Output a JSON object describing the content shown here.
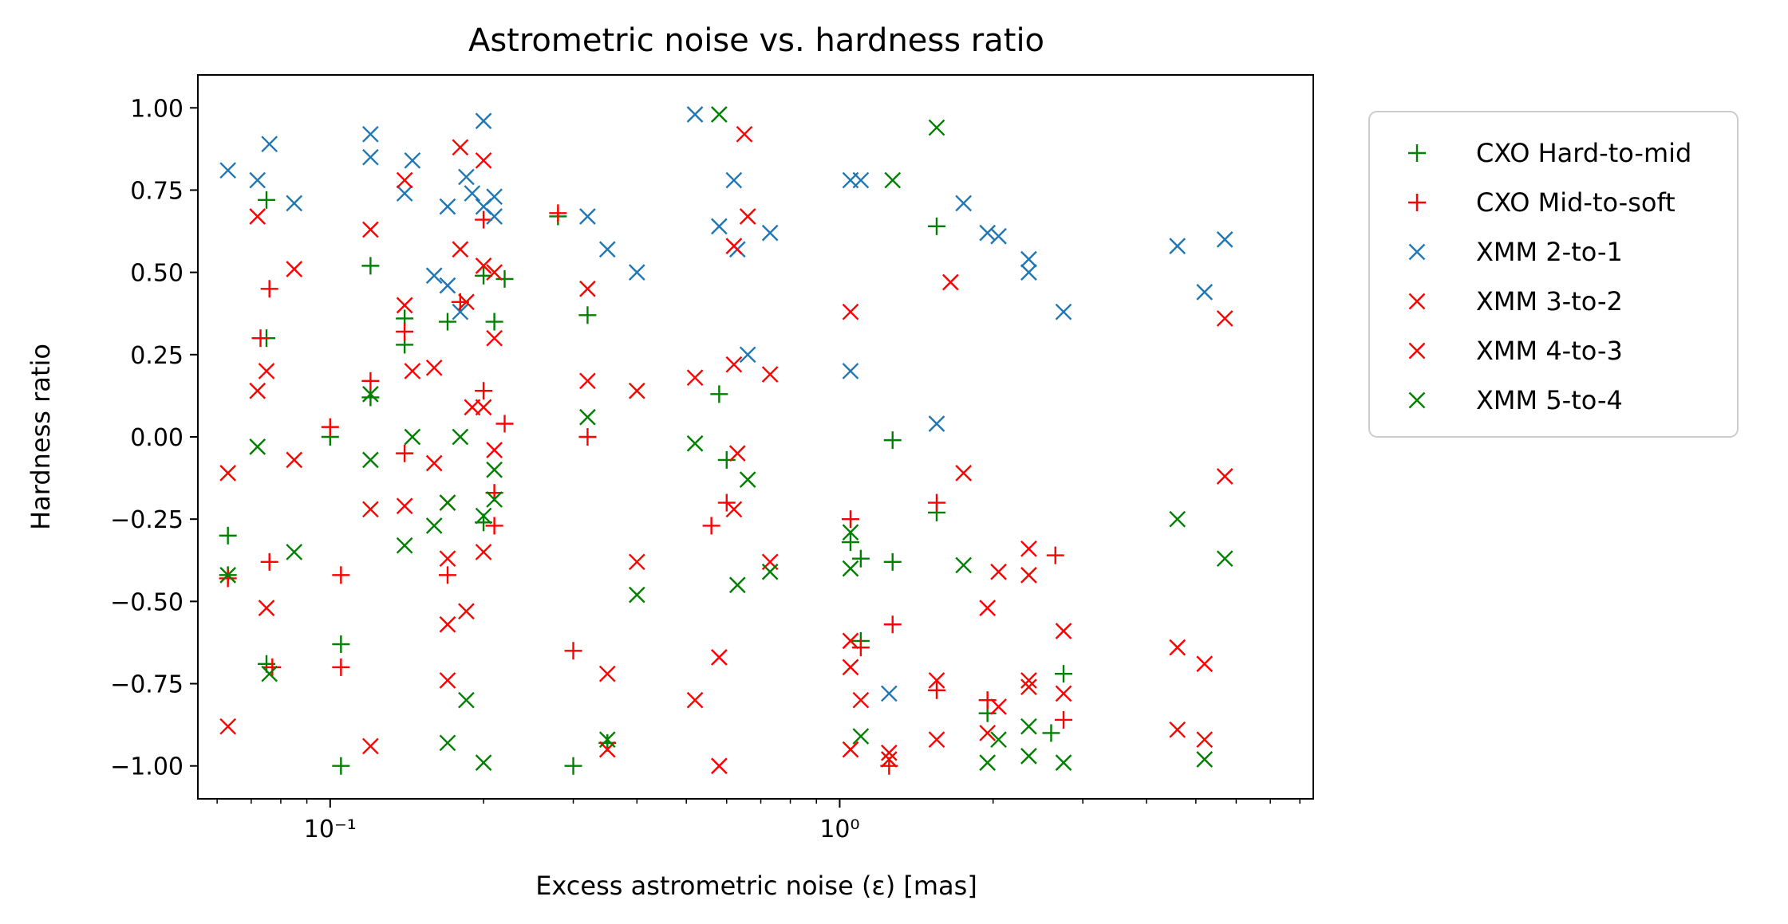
{
  "chart_data": {
    "type": "scatter",
    "title": "Astrometric noise vs. hardness ratio",
    "xlabel": "Excess astrometric noise (ε) [mas]",
    "ylabel": "Hardness ratio",
    "xscale": "log",
    "xlim": [
      0.055,
      8.5
    ],
    "ylim": [
      -1.1,
      1.1
    ],
    "xticks_major": [
      {
        "value": 0.1,
        "label": "10⁻¹"
      },
      {
        "value": 1,
        "label": "10⁰"
      }
    ],
    "yticks": [
      {
        "value": 1.0,
        "label": "1.00"
      },
      {
        "value": 0.75,
        "label": "0.75"
      },
      {
        "value": 0.5,
        "label": "0.50"
      },
      {
        "value": 0.25,
        "label": "0.25"
      },
      {
        "value": 0.0,
        "label": "0.00"
      },
      {
        "value": -0.25,
        "label": "−0.25"
      },
      {
        "value": -0.5,
        "label": "−0.50"
      },
      {
        "value": -0.75,
        "label": "−0.75"
      },
      {
        "value": -1.0,
        "label": "−1.00"
      }
    ],
    "grid": false,
    "legend_position": "outside-right",
    "series": [
      {
        "name": "CXO Hard-to-mid",
        "marker": "plus",
        "color": "#008000",
        "points": [
          [
            0.063,
            -0.3
          ],
          [
            0.063,
            -0.42
          ],
          [
            0.075,
            0.72
          ],
          [
            0.075,
            0.3
          ],
          [
            0.075,
            -0.69
          ],
          [
            0.1,
            0.0
          ],
          [
            0.105,
            -1.0
          ],
          [
            0.105,
            -0.63
          ],
          [
            0.12,
            0.52
          ],
          [
            0.12,
            0.12
          ],
          [
            0.14,
            0.36
          ],
          [
            0.14,
            0.28
          ],
          [
            0.17,
            0.35
          ],
          [
            0.2,
            0.49
          ],
          [
            0.2,
            -0.26
          ],
          [
            0.21,
            0.35
          ],
          [
            0.22,
            0.48
          ],
          [
            0.28,
            0.67
          ],
          [
            0.3,
            -1.0
          ],
          [
            0.32,
            0.37
          ],
          [
            0.35,
            -0.93
          ],
          [
            0.58,
            0.13
          ],
          [
            0.6,
            -0.07
          ],
          [
            1.05,
            -0.32
          ],
          [
            1.1,
            -0.37
          ],
          [
            1.1,
            -0.62
          ],
          [
            1.27,
            -0.38
          ],
          [
            1.27,
            -0.01
          ],
          [
            1.55,
            -0.23
          ],
          [
            1.55,
            0.64
          ],
          [
            1.95,
            -0.84
          ],
          [
            2.6,
            -0.9
          ],
          [
            2.75,
            -0.72
          ]
        ]
      },
      {
        "name": "CXO Mid-to-soft",
        "marker": "plus",
        "color": "#ff0000",
        "points": [
          [
            0.063,
            -0.43
          ],
          [
            0.073,
            0.3
          ],
          [
            0.076,
            0.45
          ],
          [
            0.076,
            -0.38
          ],
          [
            0.077,
            -0.7
          ],
          [
            0.1,
            0.03
          ],
          [
            0.105,
            -0.42
          ],
          [
            0.105,
            -0.7
          ],
          [
            0.12,
            0.17
          ],
          [
            0.14,
            -0.05
          ],
          [
            0.14,
            0.32
          ],
          [
            0.17,
            -0.42
          ],
          [
            0.18,
            0.41
          ],
          [
            0.2,
            0.66
          ],
          [
            0.2,
            0.14
          ],
          [
            0.21,
            -0.17
          ],
          [
            0.21,
            -0.27
          ],
          [
            0.22,
            0.04
          ],
          [
            0.28,
            0.68
          ],
          [
            0.3,
            -0.65
          ],
          [
            0.32,
            0.0
          ],
          [
            0.56,
            -0.27
          ],
          [
            0.6,
            -0.2
          ],
          [
            1.05,
            -0.25
          ],
          [
            1.1,
            -0.64
          ],
          [
            1.25,
            -1.0
          ],
          [
            1.27,
            -0.57
          ],
          [
            1.55,
            -0.77
          ],
          [
            1.55,
            -0.2
          ],
          [
            1.95,
            -0.8
          ],
          [
            2.65,
            -0.36
          ],
          [
            2.75,
            -0.86
          ]
        ]
      },
      {
        "name": "XMM 2-to-1",
        "marker": "x",
        "color": "#1f77b4",
        "points": [
          [
            0.063,
            0.81
          ],
          [
            0.072,
            0.78
          ],
          [
            0.076,
            0.89
          ],
          [
            0.085,
            0.71
          ],
          [
            0.12,
            0.92
          ],
          [
            0.12,
            0.85
          ],
          [
            0.14,
            0.74
          ],
          [
            0.145,
            0.84
          ],
          [
            0.16,
            0.49
          ],
          [
            0.17,
            0.7
          ],
          [
            0.17,
            0.46
          ],
          [
            0.18,
            0.38
          ],
          [
            0.185,
            0.79
          ],
          [
            0.19,
            0.74
          ],
          [
            0.2,
            0.96
          ],
          [
            0.2,
            0.7
          ],
          [
            0.21,
            0.67
          ],
          [
            0.21,
            0.73
          ],
          [
            0.32,
            0.67
          ],
          [
            0.35,
            0.57
          ],
          [
            0.4,
            0.5
          ],
          [
            0.52,
            0.98
          ],
          [
            0.58,
            0.64
          ],
          [
            0.62,
            0.78
          ],
          [
            0.63,
            0.57
          ],
          [
            0.66,
            0.25
          ],
          [
            0.73,
            0.62
          ],
          [
            1.05,
            0.78
          ],
          [
            1.05,
            0.2
          ],
          [
            1.1,
            0.78
          ],
          [
            1.25,
            -0.78
          ],
          [
            1.55,
            0.04
          ],
          [
            1.75,
            0.71
          ],
          [
            1.95,
            0.62
          ],
          [
            2.05,
            0.61
          ],
          [
            2.35,
            0.54
          ],
          [
            2.35,
            0.5
          ],
          [
            2.75,
            0.38
          ],
          [
            4.6,
            0.58
          ],
          [
            5.2,
            0.44
          ],
          [
            5.7,
            0.6
          ]
        ]
      },
      {
        "name": "XMM 3-to-2",
        "marker": "x",
        "color": "#ff0000",
        "points": [
          [
            0.063,
            -0.11
          ],
          [
            0.072,
            0.67
          ],
          [
            0.072,
            0.14
          ],
          [
            0.075,
            0.2
          ],
          [
            0.075,
            -0.52
          ],
          [
            0.085,
            -0.07
          ],
          [
            0.085,
            0.51
          ],
          [
            0.12,
            0.63
          ],
          [
            0.12,
            -0.22
          ],
          [
            0.14,
            0.4
          ],
          [
            0.14,
            -0.21
          ],
          [
            0.145,
            0.2
          ],
          [
            0.16,
            0.21
          ],
          [
            0.17,
            -0.2
          ],
          [
            0.18,
            0.57
          ],
          [
            0.185,
            0.41
          ],
          [
            0.19,
            0.09
          ],
          [
            0.2,
            0.52
          ],
          [
            0.2,
            -0.35
          ],
          [
            0.21,
            0.3
          ],
          [
            0.21,
            -0.04
          ],
          [
            0.32,
            0.45
          ],
          [
            0.32,
            0.17
          ],
          [
            0.35,
            -0.72
          ],
          [
            0.4,
            0.14
          ],
          [
            0.52,
            0.18
          ],
          [
            0.58,
            -0.67
          ],
          [
            0.62,
            0.58
          ],
          [
            0.63,
            -0.05
          ],
          [
            0.65,
            0.92
          ],
          [
            0.73,
            0.19
          ],
          [
            1.05,
            0.38
          ],
          [
            1.05,
            -0.62
          ],
          [
            1.1,
            -0.8
          ],
          [
            1.25,
            -0.96
          ],
          [
            1.55,
            -0.74
          ],
          [
            1.65,
            0.47
          ],
          [
            1.75,
            -0.11
          ],
          [
            1.95,
            -0.52
          ],
          [
            2.05,
            -0.82
          ],
          [
            2.35,
            -0.42
          ],
          [
            2.35,
            -0.74
          ],
          [
            2.75,
            -0.59
          ],
          [
            4.6,
            -0.64
          ],
          [
            5.2,
            -0.69
          ],
          [
            5.7,
            0.36
          ]
        ]
      },
      {
        "name": "XMM 4-to-3",
        "marker": "x",
        "color": "#ff0000",
        "points": [
          [
            0.063,
            -0.88
          ],
          [
            0.12,
            -0.94
          ],
          [
            0.14,
            0.78
          ],
          [
            0.16,
            -0.08
          ],
          [
            0.17,
            -0.37
          ],
          [
            0.17,
            -0.57
          ],
          [
            0.17,
            -0.74
          ],
          [
            0.18,
            0.88
          ],
          [
            0.185,
            -0.53
          ],
          [
            0.2,
            0.84
          ],
          [
            0.2,
            0.09
          ],
          [
            0.21,
            0.5
          ],
          [
            0.35,
            -0.95
          ],
          [
            0.4,
            -0.38
          ],
          [
            0.52,
            -0.8
          ],
          [
            0.58,
            -1.0
          ],
          [
            0.62,
            -0.22
          ],
          [
            0.62,
            0.22
          ],
          [
            0.66,
            0.67
          ],
          [
            0.73,
            -0.38
          ],
          [
            1.05,
            -0.7
          ],
          [
            1.05,
            -0.95
          ],
          [
            1.25,
            -0.98
          ],
          [
            1.55,
            -0.92
          ],
          [
            1.95,
            -0.9
          ],
          [
            2.05,
            -0.41
          ],
          [
            2.35,
            -0.34
          ],
          [
            2.35,
            -0.76
          ],
          [
            2.75,
            -0.78
          ],
          [
            4.6,
            -0.89
          ],
          [
            5.2,
            -0.92
          ],
          [
            5.7,
            -0.12
          ]
        ]
      },
      {
        "name": "XMM 5-to-4",
        "marker": "x",
        "color": "#008000",
        "points": [
          [
            0.063,
            -0.42
          ],
          [
            0.072,
            -0.03
          ],
          [
            0.076,
            -0.72
          ],
          [
            0.085,
            -0.35
          ],
          [
            0.12,
            -0.07
          ],
          [
            0.12,
            0.13
          ],
          [
            0.14,
            -0.33
          ],
          [
            0.145,
            0.0
          ],
          [
            0.16,
            -0.27
          ],
          [
            0.17,
            -0.2
          ],
          [
            0.17,
            -0.93
          ],
          [
            0.18,
            0.0
          ],
          [
            0.185,
            -0.8
          ],
          [
            0.2,
            -0.99
          ],
          [
            0.2,
            -0.24
          ],
          [
            0.21,
            -0.1
          ],
          [
            0.21,
            -0.19
          ],
          [
            0.32,
            0.06
          ],
          [
            0.35,
            -0.92
          ],
          [
            0.4,
            -0.48
          ],
          [
            0.52,
            -0.02
          ],
          [
            0.58,
            0.98
          ],
          [
            0.63,
            -0.45
          ],
          [
            0.66,
            -0.13
          ],
          [
            0.73,
            -0.41
          ],
          [
            1.05,
            -0.4
          ],
          [
            1.05,
            -0.29
          ],
          [
            1.1,
            -0.91
          ],
          [
            1.27,
            0.78
          ],
          [
            1.55,
            0.94
          ],
          [
            1.75,
            -0.39
          ],
          [
            1.95,
            -0.99
          ],
          [
            2.05,
            -0.92
          ],
          [
            2.35,
            -0.88
          ],
          [
            2.35,
            -0.97
          ],
          [
            2.75,
            -0.99
          ],
          [
            4.6,
            -0.25
          ],
          [
            5.2,
            -0.98
          ],
          [
            5.7,
            -0.37
          ]
        ]
      }
    ]
  }
}
